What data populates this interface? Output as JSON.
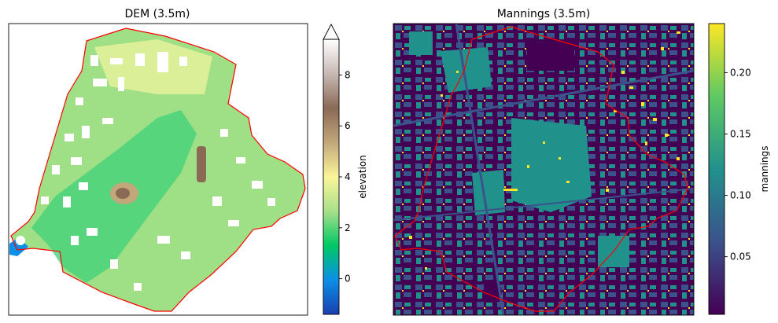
{
  "chart_data": [
    {
      "type": "heatmap",
      "title": "DEM (3.5m)",
      "colorbar": {
        "label": "elevation",
        "range": [
          -1.4,
          9.4
        ],
        "extend": "max",
        "ticks": [
          0,
          2,
          4,
          6,
          8
        ],
        "colormap": "terrain",
        "colors": [
          "#1a3fb0",
          "#0b8fe8",
          "#00c864",
          "#a8e08a",
          "#fbf59a",
          "#c2a77a",
          "#8a6a55",
          "#c8b9b4",
          "#ffffff"
        ]
      },
      "xticks": [],
      "yticks": [],
      "boundary_color": "#ff0000"
    },
    {
      "type": "heatmap",
      "title": "Mannings (3.5m)",
      "colorbar": {
        "label": "mannings",
        "range": [
          0.003,
          0.24
        ],
        "ticks": [
          0.05,
          0.1,
          0.15,
          0.2
        ],
        "tick_labels": [
          "0.05",
          "0.10",
          "0.15",
          "0.20"
        ],
        "colormap": "viridis",
        "colors": [
          "#440154",
          "#3b528b",
          "#21918c",
          "#5ec962",
          "#fde725"
        ]
      },
      "xticks": [],
      "yticks": [],
      "boundary_color": "#ff0000"
    }
  ]
}
